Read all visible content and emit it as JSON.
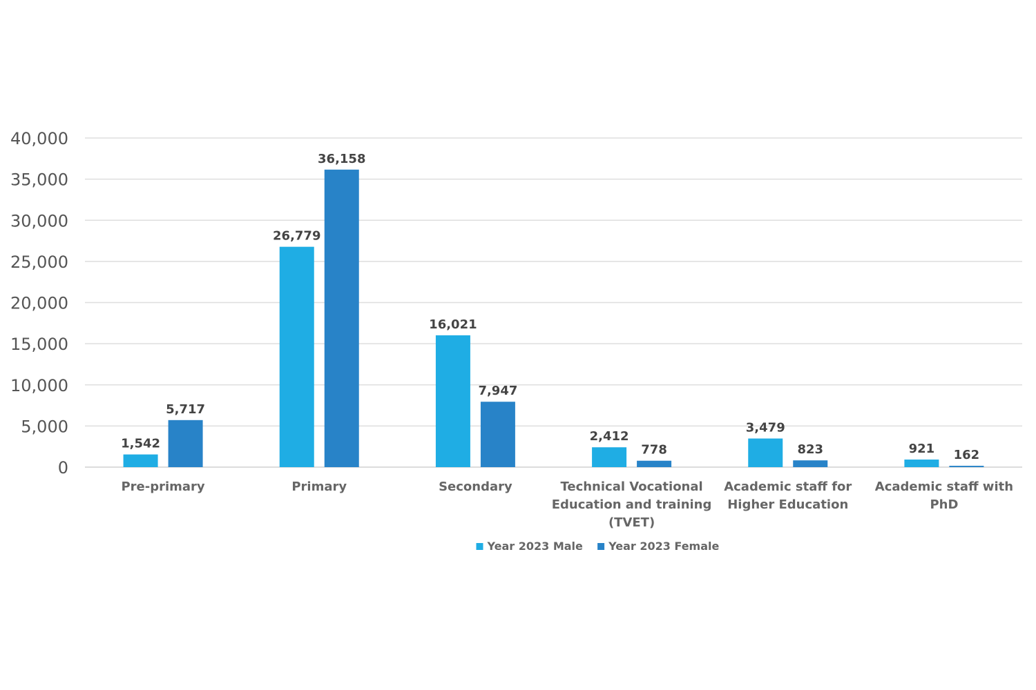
{
  "chart_data": {
    "type": "bar",
    "title": "",
    "xlabel": "",
    "ylabel": "",
    "categories": [
      [
        "Pre-primary"
      ],
      [
        "Primary"
      ],
      [
        "Secondary"
      ],
      [
        "Technical Vocational",
        "Education and training",
        "(TVET)"
      ],
      [
        "Academic staff for",
        "Higher Education"
      ],
      [
        "Academic staff with",
        "PhD"
      ]
    ],
    "series": [
      {
        "name": "Year 2023 Male",
        "color": "#1FADE4",
        "values": [
          1542,
          26779,
          16021,
          2412,
          3479,
          921
        ],
        "labels": [
          "1,542",
          "26,779",
          "16,021",
          "2,412",
          "3,479",
          "921"
        ]
      },
      {
        "name": "Year 2023 Female",
        "color": "#2883C8",
        "values": [
          5717,
          36158,
          7947,
          778,
          823,
          162
        ],
        "labels": [
          "5,717",
          "36,158",
          "7,947",
          "778",
          "823",
          "162"
        ]
      }
    ],
    "ylim": [
      0,
      40000
    ],
    "yticks": [
      0,
      5000,
      10000,
      15000,
      20000,
      25000,
      30000,
      35000,
      40000
    ],
    "ytick_labels": [
      "0",
      "5,000",
      "10,000",
      "15,000",
      "20,000",
      "25,000",
      "30,000",
      "35,000",
      "40,000"
    ],
    "grid": true,
    "legend_position": "bottom-center"
  }
}
